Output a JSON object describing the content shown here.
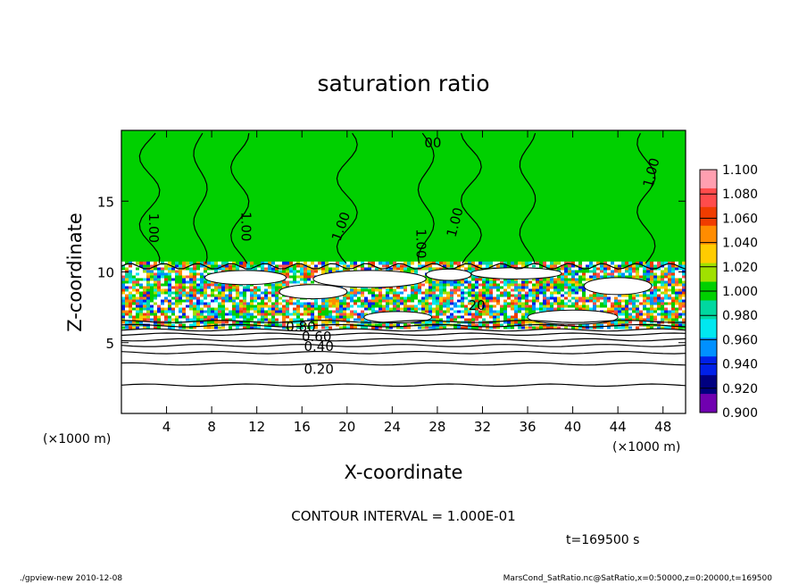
{
  "chart_data": {
    "type": "heatmap",
    "title": "saturation ratio",
    "xlabel": "X-coordinate",
    "ylabel": "Z-coordinate",
    "x_unit": "(×1000 m)",
    "y_unit": "(×1000 m)",
    "xlim": [
      0,
      50
    ],
    "ylim": [
      0,
      20
    ],
    "x_ticks": [
      "4",
      "8",
      "12",
      "16",
      "20",
      "24",
      "28",
      "32",
      "36",
      "40",
      "44",
      "48"
    ],
    "y_ticks": [
      "5",
      "10",
      "15"
    ],
    "contour_labels": [
      {
        "text": "1.00",
        "x": 2.8,
        "z": 13.1,
        "rot": 90
      },
      {
        "text": "1.00",
        "x": 11.0,
        "z": 13.2,
        "rot": 90
      },
      {
        "text": "1.00",
        "x": 19.5,
        "z": 13.2,
        "rot": -70
      },
      {
        "text": "1.00",
        "x": 26.5,
        "z": 12.0,
        "rot": 90
      },
      {
        "text": "1.00",
        "x": 29.6,
        "z": 13.5,
        "rot": -75
      },
      {
        "text": "1.00",
        "x": 47.0,
        "z": 17.0,
        "rot": -75
      },
      {
        "text": "00",
        "x": 27.6,
        "z": 19.1,
        "rot": 0
      },
      {
        "text": "0.80",
        "x": 15.9,
        "z": 6.1,
        "rot": 0
      },
      {
        "text": "0.60",
        "x": 17.3,
        "z": 5.4,
        "rot": 0
      },
      {
        "text": "0.40",
        "x": 17.5,
        "z": 4.7,
        "rot": 0
      },
      {
        "text": "0.20",
        "x": 17.5,
        "z": 3.1,
        "rot": 0
      },
      {
        "text": "20",
        "x": 31.5,
        "z": 7.6,
        "rot": 0
      }
    ],
    "colorbar": {
      "min": 0.9,
      "max": 1.1,
      "labels": [
        "1.100",
        "1.080",
        "1.060",
        "1.040",
        "1.020",
        "1.000",
        "0.980",
        "0.960",
        "0.940",
        "0.920",
        "0.900"
      ],
      "colors": [
        "#ff9fb0",
        "#ff4c4c",
        "#f03c00",
        "#ff8c00",
        "#ffcc00",
        "#a0e000",
        "#00d000",
        "#00d8a0",
        "#00e8f0",
        "#0090ff",
        "#0020e8",
        "#000080",
        "#7000b0"
      ]
    },
    "green_color": "#00d000",
    "contour_interval": "CONTOUR INTERVAL = 1.000E-01",
    "time": "t=169500 s"
  },
  "footer": {
    "left": "./gpview-new  2010-12-08",
    "right": "MarsCond_SatRatio.nc@SatRatio,x=0:50000,z=0:20000,t=169500"
  }
}
